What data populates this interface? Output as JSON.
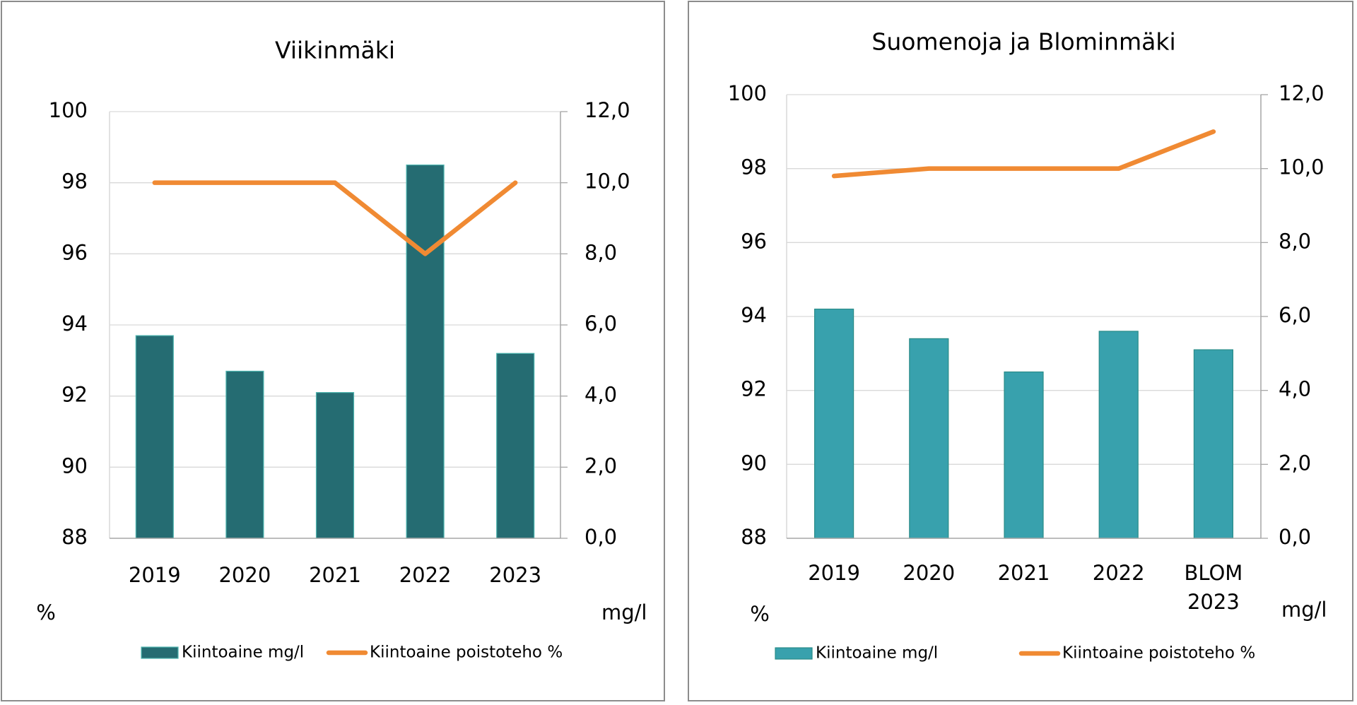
{
  "colors": {
    "bar_left": "#256C72",
    "bar_left_edge": "#4FB6B0",
    "bar_right": "#38A1AD",
    "bar_right_edge": "#2A8C88",
    "line": "#F08A33",
    "grid": "#D9D9D9",
    "axis": "#A6A6A6"
  },
  "chart_data": [
    {
      "type": "bar+line",
      "title": "Viikinmäki",
      "categories": [
        "2019",
        "2020",
        "2021",
        "2022",
        "2023"
      ],
      "series": [
        {
          "name": "Kiintoaine mg/l",
          "type": "bar",
          "axis": "right",
          "values": [
            5.7,
            4.7,
            4.1,
            10.5,
            5.2
          ]
        },
        {
          "name": "Kiintoaine poistoteho %",
          "type": "line",
          "axis": "left",
          "values": [
            98,
            98,
            98,
            96,
            98
          ]
        }
      ],
      "y_left": {
        "label": "%",
        "range": [
          88,
          100
        ],
        "ticks": [
          "88",
          "90",
          "92",
          "94",
          "96",
          "98",
          "100"
        ]
      },
      "y_right": {
        "label": "mg/l",
        "range": [
          0,
          12
        ],
        "ticks": [
          "0,0",
          "2,0",
          "4,0",
          "6,0",
          "8,0",
          "10,0",
          "12,0"
        ]
      },
      "grid": true,
      "legend": {
        "position": "bottom",
        "entries": [
          "Kiintoaine mg/l",
          "Kiintoaine poistoteho %"
        ]
      }
    },
    {
      "type": "bar+line",
      "title": "Suomenoja ja Blominmäki",
      "categories": [
        "2019",
        "2020",
        "2021",
        "2022",
        "BLOM 2023"
      ],
      "category_lines": [
        [
          "2019"
        ],
        [
          "2020"
        ],
        [
          "2021"
        ],
        [
          "2022"
        ],
        [
          "BLOM",
          "2023"
        ]
      ],
      "series": [
        {
          "name": "Kiintoaine mg/l",
          "type": "bar",
          "axis": "right",
          "values": [
            6.2,
            5.4,
            4.5,
            5.6,
            5.1
          ]
        },
        {
          "name": "Kiintoaine poistoteho %",
          "type": "line",
          "axis": "left",
          "values": [
            97.8,
            98,
            98,
            98,
            99
          ]
        }
      ],
      "y_left": {
        "label": "%",
        "range": [
          88,
          100
        ],
        "ticks": [
          "88",
          "90",
          "92",
          "94",
          "96",
          "98",
          "100"
        ]
      },
      "y_right": {
        "label": "mg/l",
        "range": [
          0,
          12
        ],
        "ticks": [
          "0,0",
          "2,0",
          "4,0",
          "6,0",
          "8,0",
          "10,0",
          "12,0"
        ]
      },
      "grid": true,
      "legend": {
        "position": "bottom",
        "entries": [
          "Kiintoaine mg/l",
          "Kiintoaine poistoteho %"
        ]
      }
    }
  ]
}
